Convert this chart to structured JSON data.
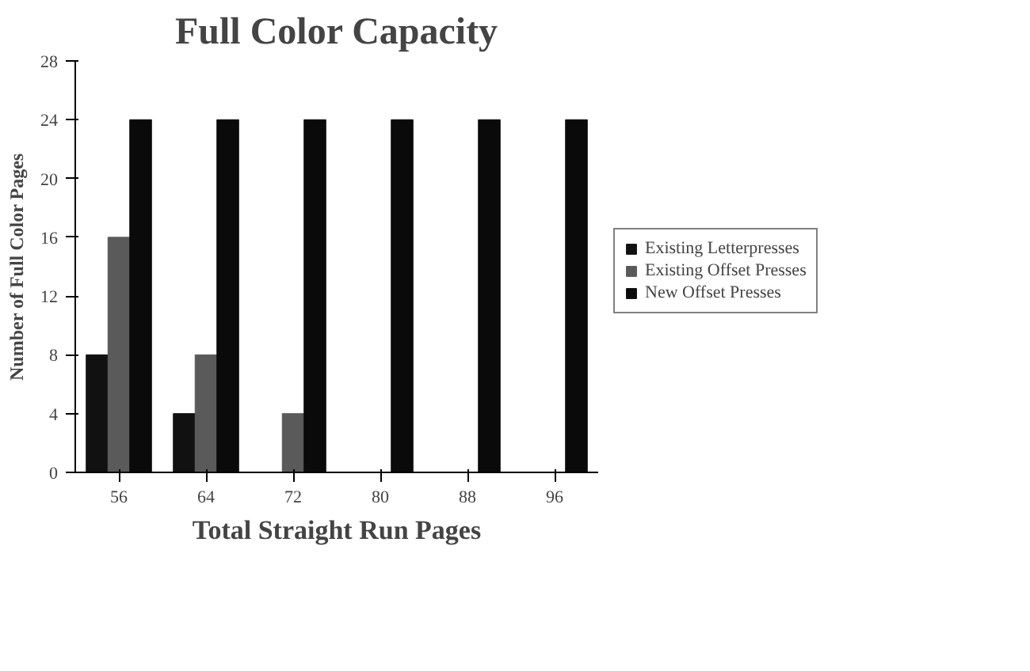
{
  "chart_data": {
    "type": "bar",
    "title": "Full Color Capacity",
    "xlabel": "Total Straight Run Pages",
    "ylabel": "Number of Full Color Pages",
    "categories": [
      "56",
      "64",
      "72",
      "80",
      "88",
      "96"
    ],
    "series": [
      {
        "name": "Existing Letterpresses",
        "color": "#111111",
        "values": [
          8,
          4,
          0,
          0,
          0,
          0
        ]
      },
      {
        "name": "Existing Offset Presses",
        "color": "#5a5a5a",
        "values": [
          16,
          8,
          4,
          0,
          0,
          0
        ]
      },
      {
        "name": "New Offset Presses",
        "color": "#0a0a0a",
        "values": [
          24,
          24,
          24,
          24,
          24,
          24
        ]
      }
    ],
    "ylim": [
      0,
      28
    ],
    "yticks": [
      0,
      4,
      8,
      12,
      16,
      20,
      24,
      28
    ],
    "grid": false,
    "legend": "right"
  }
}
